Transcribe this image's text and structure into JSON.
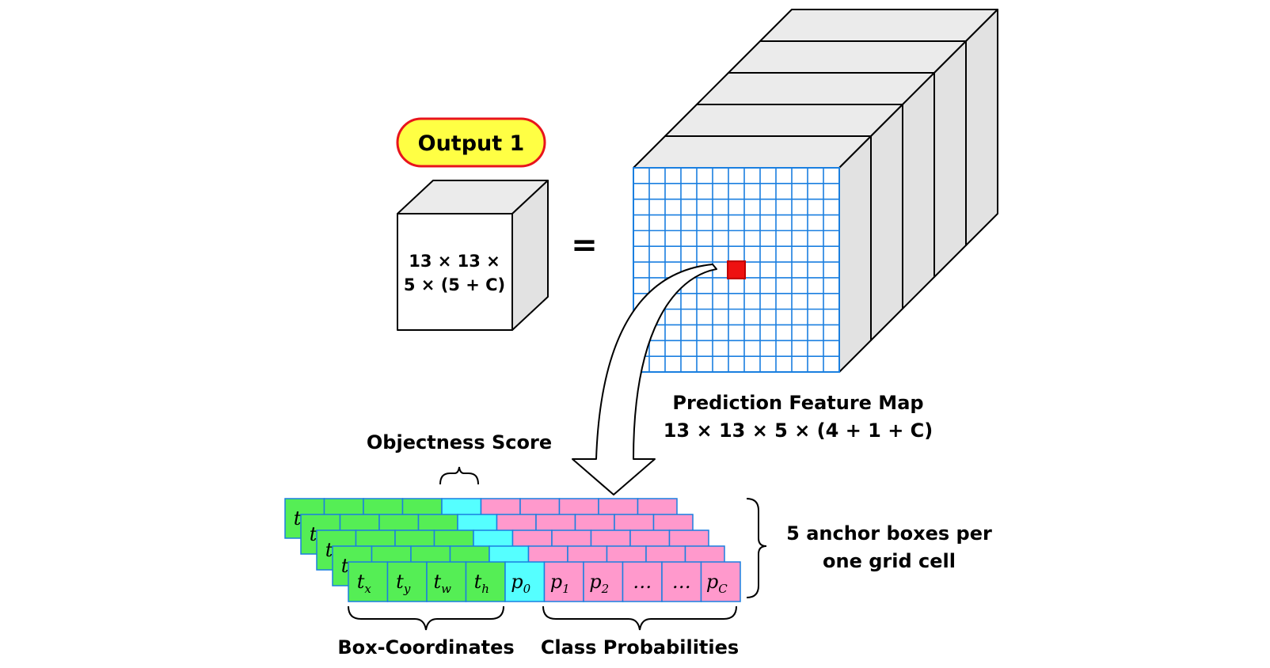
{
  "output_badge": {
    "label": "Output 1",
    "fill": "#ffff44",
    "stroke": "#e8141c"
  },
  "small_cube": {
    "line1": "13 × 13 ×",
    "line2": "5 × (5 + C)"
  },
  "equals_sign": "=",
  "feature_map": {
    "title": "Prediction Feature Map",
    "dims": "13 × 13 × 5 × (4 + 1 + C)",
    "grid_cells": 13,
    "grid_color": "#1a7fe0",
    "highlight_color": "#ee1111"
  },
  "objectness_label": "Objectness Score",
  "anchor_label": {
    "line1": "5 anchor boxes per",
    "line2": "one grid cell"
  },
  "box_coords_label": "Box-Coordinates",
  "class_prob_label": "Class Probabilities",
  "anchor_layers": 5,
  "cells": [
    {
      "base": "t",
      "sub": "x",
      "kind": "coord"
    },
    {
      "base": "t",
      "sub": "y",
      "kind": "coord"
    },
    {
      "base": "t",
      "sub": "w",
      "kind": "coord"
    },
    {
      "base": "t",
      "sub": "h",
      "kind": "coord"
    },
    {
      "base": "p",
      "sub": "0",
      "kind": "obj"
    },
    {
      "base": "p",
      "sub": "1",
      "kind": "cls"
    },
    {
      "base": "p",
      "sub": "2",
      "kind": "cls"
    },
    {
      "base": "…",
      "sub": "",
      "kind": "cls"
    },
    {
      "base": "…",
      "sub": "",
      "kind": "cls"
    },
    {
      "base": "p",
      "sub": "C",
      "kind": "cls"
    }
  ],
  "colors": {
    "coord": "#55ee55",
    "obj": "#55ffff",
    "cls": "#ff99cc",
    "cell_border": "#1a7fe0",
    "cube_top": "#ebebeb",
    "cube_side": "#e2e2e2"
  }
}
